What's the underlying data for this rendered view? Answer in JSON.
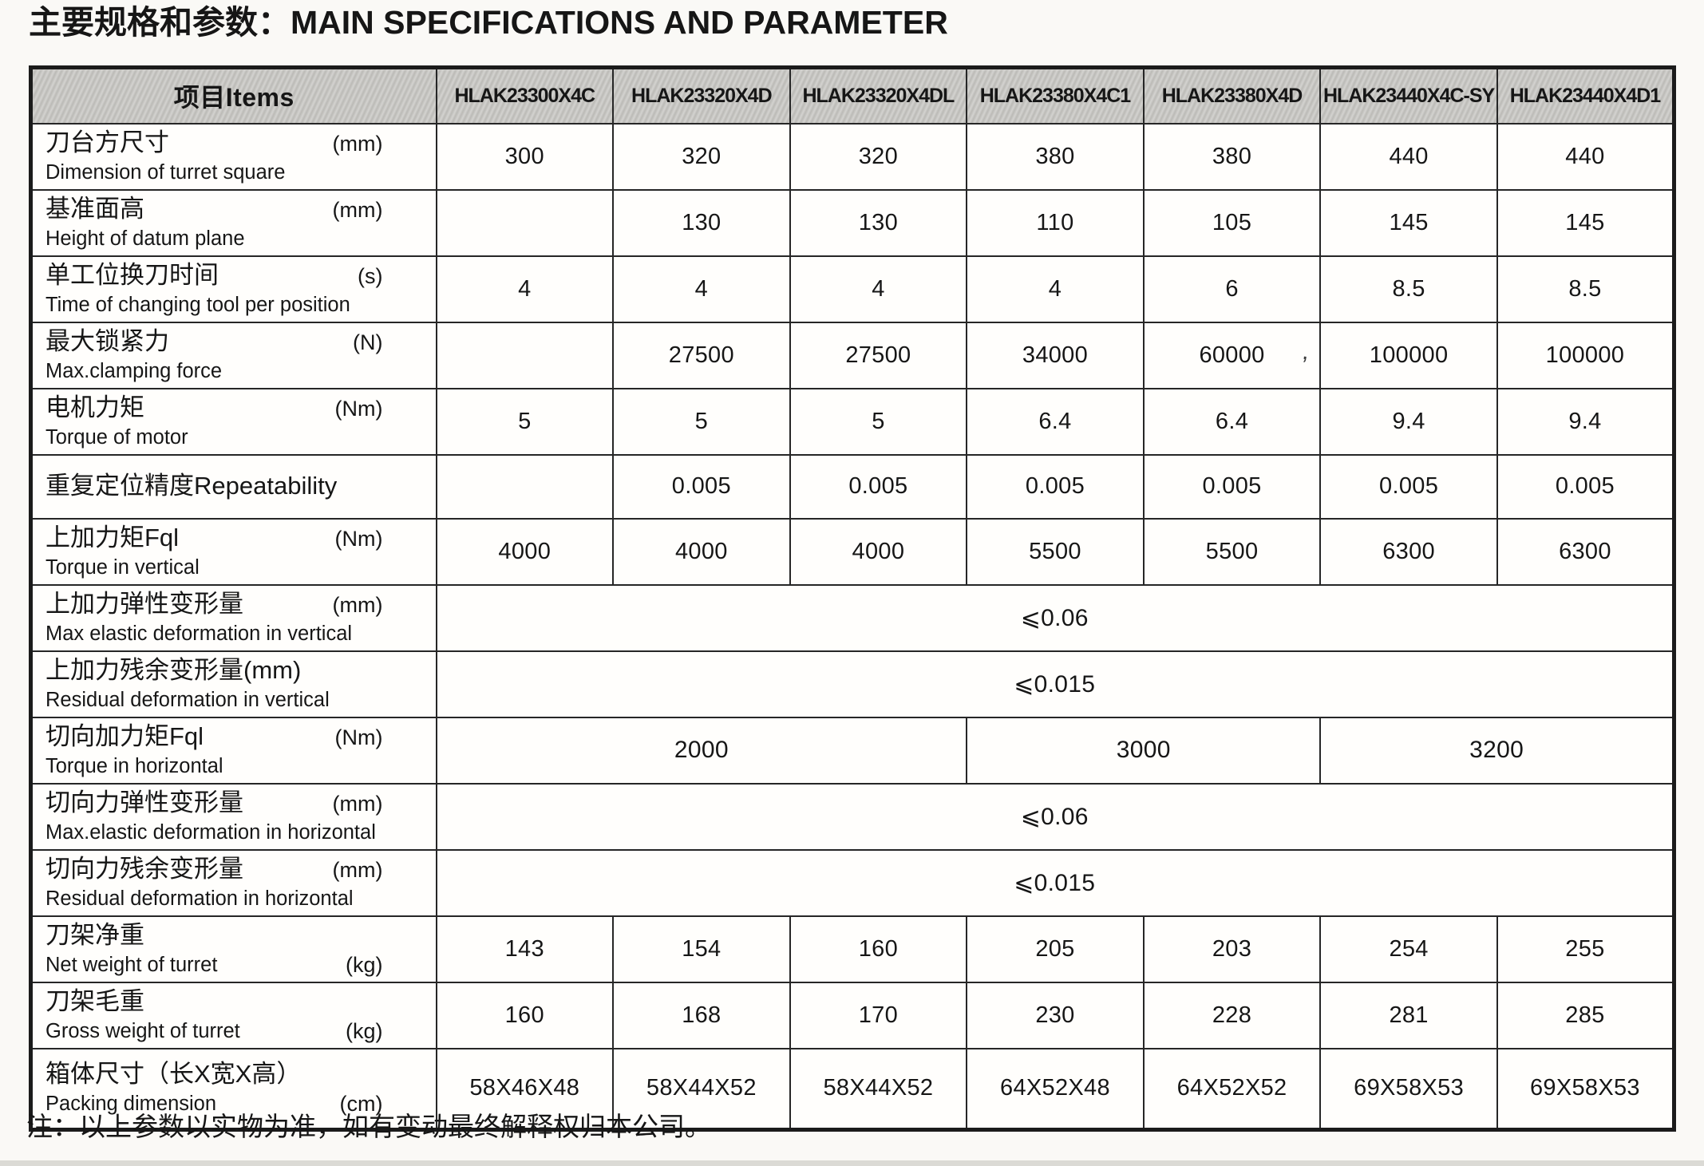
{
  "page": {
    "title_zh": "主要规格和参数：",
    "title_en": "MAIN SPECIFICATIONS AND PARAMETER",
    "note": "注：以上参数以实物为准，如有变动最终解释权归本公司。",
    "artifact_mark": ","
  },
  "colors": {
    "page_bg": "#faf9f6",
    "header_bg": "#c5c4c0",
    "border": "#1b1b1b",
    "text": "#161616"
  },
  "table": {
    "items_header": "项目Items",
    "models": [
      "HLAK23300X4C",
      "HLAK23320X4D",
      "HLAK23320X4DL",
      "HLAK23380X4C1",
      "HLAK23380X4D",
      "HLAK23440X4C-SY",
      "HLAK23440X4D1"
    ],
    "rows": [
      {
        "zh": "刀台方尺寸",
        "unit": "(mm)",
        "unit_line": 1,
        "en": "Dimension of turret square",
        "cells": {
          "type": "cells",
          "values": [
            "300",
            "320",
            "320",
            "380",
            "380",
            "440",
            "440"
          ]
        }
      },
      {
        "zh": "基准面高",
        "unit": "(mm)",
        "unit_line": 1,
        "en": "Height of datum plane",
        "cells": {
          "type": "cells",
          "values": [
            "",
            "130",
            "130",
            "110",
            "105",
            "145",
            "145"
          ]
        }
      },
      {
        "zh": "单工位换刀时间",
        "unit": "(s)",
        "unit_line": 1,
        "en": "Time of changing tool per position",
        "cells": {
          "type": "cells",
          "values": [
            "4",
            "4",
            "4",
            "4",
            "6",
            "8.5",
            "8.5"
          ]
        }
      },
      {
        "zh": "最大锁紧力",
        "unit": "(N)",
        "unit_line": 1,
        "en": "Max.clamping force",
        "cells": {
          "type": "cells",
          "values": [
            "",
            "27500",
            "27500",
            "34000",
            "60000",
            "100000",
            "100000"
          ]
        }
      },
      {
        "zh": "电机力矩",
        "unit": "(Nm)",
        "unit_line": 1,
        "en": "Torque of motor",
        "cells": {
          "type": "cells",
          "values": [
            "5",
            "5",
            "5",
            "6.4",
            "6.4",
            "9.4",
            "9.4"
          ]
        }
      },
      {
        "zh": "重复定位精度Repeatability",
        "unit": "",
        "unit_line": 0,
        "en": "",
        "single_line": true,
        "cells": {
          "type": "cells",
          "values": [
            "",
            "0.005",
            "0.005",
            "0.005",
            "0.005",
            "0.005",
            "0.005"
          ]
        }
      },
      {
        "zh": "上加力矩Fql",
        "unit": "(Nm)",
        "unit_line": 1,
        "en": "Torque in vertical",
        "cells": {
          "type": "cells",
          "values": [
            "4000",
            "4000",
            "4000",
            "5500",
            "5500",
            "6300",
            "6300"
          ]
        }
      },
      {
        "zh": "上加力弹性变形量",
        "unit": "(mm)",
        "unit_line": 1,
        "en": "Max elastic deformation in vertical",
        "cells": {
          "type": "full",
          "value": "⩽0.06"
        }
      },
      {
        "zh": "上加力残余变形量(mm)",
        "unit": "",
        "unit_line": 0,
        "en": "Residual deformation in vertical",
        "cells": {
          "type": "full",
          "value": "⩽0.015"
        }
      },
      {
        "zh": "切向加力矩Fql",
        "unit": "(Nm)",
        "unit_line": 1,
        "en": "Torque in horizontal",
        "cells": {
          "type": "groups",
          "groups": [
            {
              "span": 3,
              "value": "2000"
            },
            {
              "span": 2,
              "value": "3000"
            },
            {
              "span": 2,
              "value": "3200"
            }
          ]
        }
      },
      {
        "zh": "切向力弹性变形量",
        "unit": "(mm)",
        "unit_line": 1,
        "en": "Max.elastic deformation in horizontal",
        "cells": {
          "type": "full",
          "value": "⩽0.06"
        }
      },
      {
        "zh": "切向力残余变形量",
        "unit": "(mm)",
        "unit_line": 1,
        "en": "Residual deformation in horizontal",
        "cells": {
          "type": "full",
          "value": "⩽0.015"
        }
      },
      {
        "zh": "刀架净重",
        "unit": "(kg)",
        "unit_line": 2,
        "en": "Net weight of turret",
        "cells": {
          "type": "cells",
          "values": [
            "143",
            "154",
            "160",
            "205",
            "203",
            "254",
            "255"
          ]
        }
      },
      {
        "zh": "刀架毛重",
        "unit": "(kg)",
        "unit_line": 2,
        "en": "Gross weight of turret",
        "cells": {
          "type": "cells",
          "values": [
            "160",
            "168",
            "170",
            "230",
            "228",
            "281",
            "285"
          ]
        }
      },
      {
        "zh": "箱体尺寸（长X宽X高）",
        "unit": "(cm)",
        "unit_line": 2,
        "en": "Packing dimension",
        "cells": {
          "type": "cells",
          "values": [
            "58X46X48",
            "58X44X52",
            "58X44X52",
            "64X52X48",
            "64X52X52",
            "69X58X53",
            "69X58X53"
          ]
        }
      }
    ]
  }
}
